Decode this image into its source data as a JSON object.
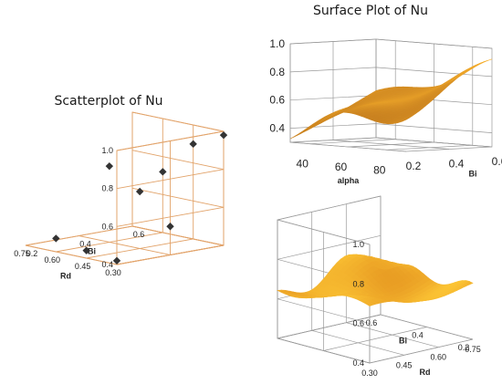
{
  "chart_data": [
    {
      "type": "scatter",
      "title": "Scatterplot of Nu",
      "axes": {
        "x": {
          "label": "Rd",
          "range": [
            0.3,
            0.75
          ],
          "ticks": [
            "0.30",
            "0.45",
            "0.60",
            "0.75"
          ]
        },
        "y": {
          "label": "Bi",
          "range": [
            0.2,
            0.6
          ],
          "ticks": [
            "0.2",
            "0.4",
            "0.6"
          ]
        },
        "z": {
          "label": "",
          "range": [
            0.4,
            1.0
          ],
          "ticks": [
            "0.4",
            "0.6",
            "0.8",
            "1.0"
          ]
        }
      },
      "grid": true,
      "marker_color": "#333333",
      "frame_color": "#e2a36a",
      "points": [
        {
          "x": 0.3,
          "y": 0.2,
          "z": 0.42
        },
        {
          "x": 0.45,
          "y": 0.2,
          "z": 0.44
        },
        {
          "x": 0.6,
          "y": 0.2,
          "z": 0.47
        },
        {
          "x": 0.3,
          "y": 0.4,
          "z": 0.55
        },
        {
          "x": 0.45,
          "y": 0.4,
          "z": 0.7
        },
        {
          "x": 0.6,
          "y": 0.4,
          "z": 0.8
        },
        {
          "x": 0.3,
          "y": 0.6,
          "z": 0.98
        },
        {
          "x": 0.45,
          "y": 0.6,
          "z": 0.9
        },
        {
          "x": 0.6,
          "y": 0.6,
          "z": 0.72
        }
      ]
    },
    {
      "type": "surface",
      "title": "Surface Plot of Nu",
      "axes": {
        "x": {
          "label": "alpha",
          "range": [
            30,
            90
          ],
          "ticks": [
            "40",
            "60",
            "80"
          ]
        },
        "y": {
          "label": "Bi",
          "range": [
            0.2,
            0.6
          ],
          "ticks": [
            "0.2",
            "0.4",
            "0.6"
          ]
        },
        "z": {
          "label": "",
          "range": [
            0.3,
            1.0
          ],
          "ticks": [
            "0.4",
            "0.6",
            "0.8",
            "1.0"
          ]
        }
      },
      "grid": true,
      "color_low": "#7a3208",
      "color_high": "#ffb830"
    },
    {
      "type": "surface",
      "title": "",
      "axes": {
        "x": {
          "label": "Rd",
          "range": [
            0.3,
            0.75
          ],
          "ticks": [
            "0.30",
            "0.45",
            "0.60",
            "0.75"
          ]
        },
        "y": {
          "label": "Bi",
          "range": [
            0.2,
            0.6
          ],
          "ticks": [
            "0.2",
            "0.4",
            "0.6"
          ]
        },
        "z": {
          "label": "",
          "range": [
            0.4,
            1.0
          ],
          "ticks": [
            "0.4",
            "0.6",
            "0.8",
            "1.0"
          ]
        }
      },
      "grid": true,
      "color_low": "#c85a06",
      "color_high": "#ffcb38"
    }
  ]
}
